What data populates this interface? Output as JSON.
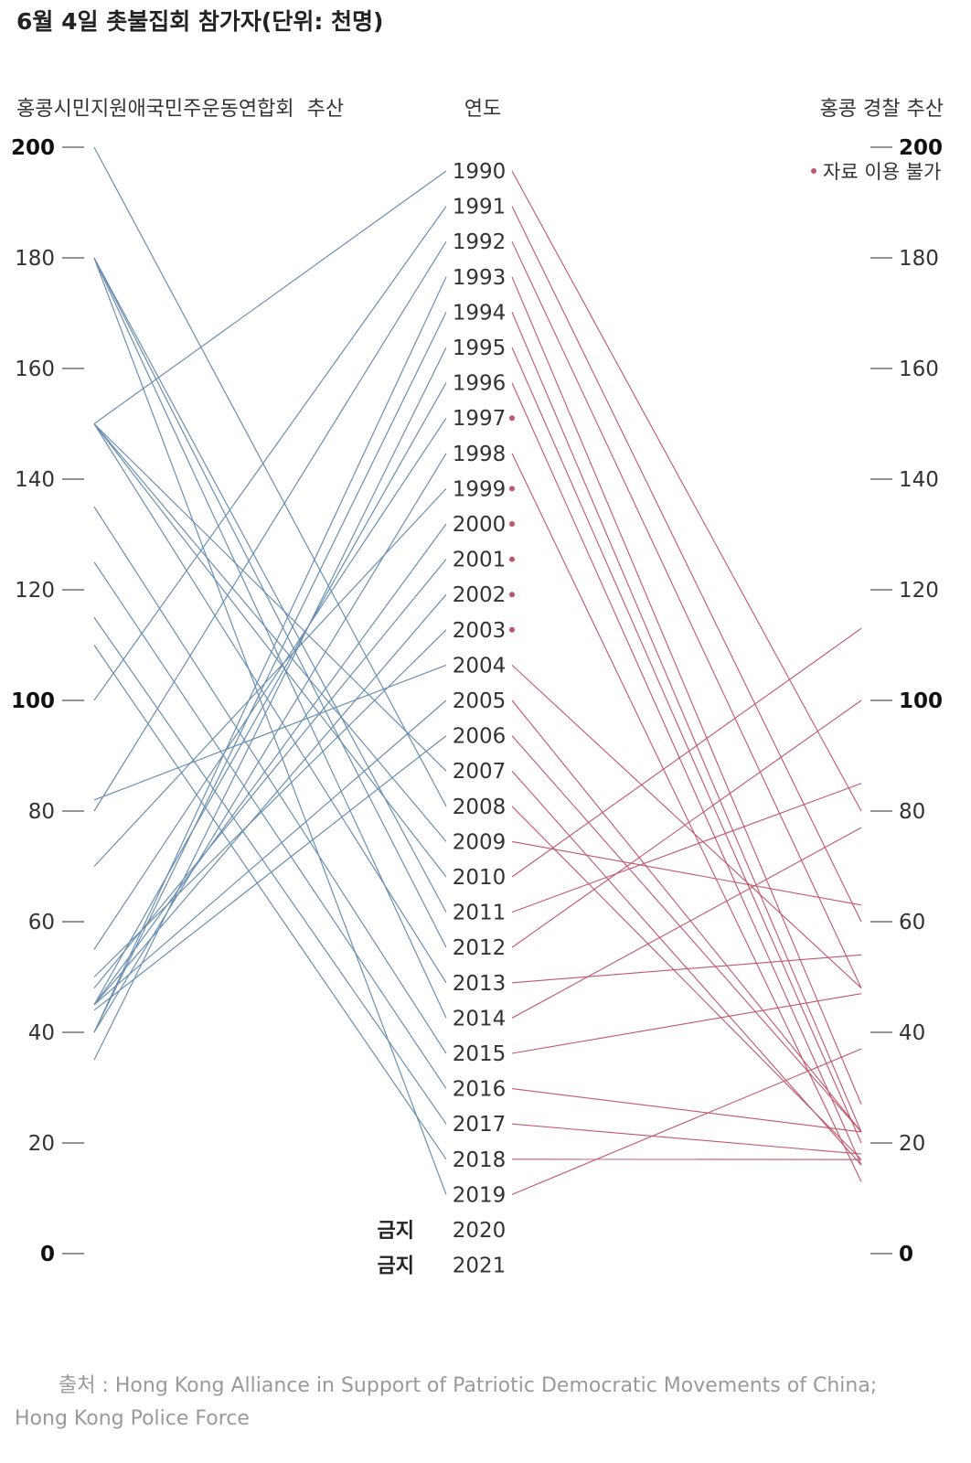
{
  "chart_data": {
    "type": "slope",
    "title": "6월 4일 촛불집회 참가자(단위: 천명)",
    "left_label": "홍콩시민지원애국민주운동연합회  추산",
    "center_label": "연도",
    "right_label": "홍콩 경찰 추산",
    "ylim": [
      0,
      200
    ],
    "ticks": [
      "0",
      "20",
      "40",
      "60",
      "80",
      "100",
      "120",
      "140",
      "160",
      "180",
      "200"
    ],
    "bold_ticks": [
      "0",
      "100",
      "200"
    ],
    "years": [
      "1990",
      "1991",
      "1992",
      "1993",
      "1994",
      "1995",
      "1996",
      "1997",
      "1998",
      "1999",
      "2000",
      "2001",
      "2002",
      "2003",
      "2004",
      "2005",
      "2006",
      "2007",
      "2008",
      "2009",
      "2010",
      "2011",
      "2012",
      "2013",
      "2014",
      "2015",
      "2016",
      "2017",
      "2018",
      "2019",
      "2020",
      "2021"
    ],
    "alliance_estimate": [
      150,
      100,
      80,
      40,
      40,
      35,
      45,
      55,
      40,
      70,
      45,
      48,
      45,
      50,
      82,
      45,
      44,
      150,
      200,
      150,
      150,
      180,
      180,
      150,
      180,
      135,
      125,
      115,
      110,
      180,
      null,
      null
    ],
    "police_estimate": [
      80,
      60,
      48,
      27,
      22,
      20,
      16,
      null,
      13,
      null,
      null,
      null,
      null,
      null,
      48,
      22,
      22,
      16,
      17,
      63,
      113,
      85,
      100,
      54,
      77,
      47,
      22,
      18,
      17,
      37,
      null,
      null
    ],
    "no_data_years": [
      "1997",
      "1999",
      "2000",
      "2001",
      "2002",
      "2003"
    ],
    "banned_years": [
      "2020",
      "2021"
    ],
    "banned_label": "금지",
    "legend_note": "자료 이용 불가"
  },
  "source": {
    "label": "출처 :",
    "line1": "Hong Kong Alliance in Support of Patriotic Democratic Movements of China;",
    "line2": "Hong Kong Police Force"
  },
  "colors": {
    "alliance": "#6b8fb0",
    "police": "#c0566c"
  }
}
